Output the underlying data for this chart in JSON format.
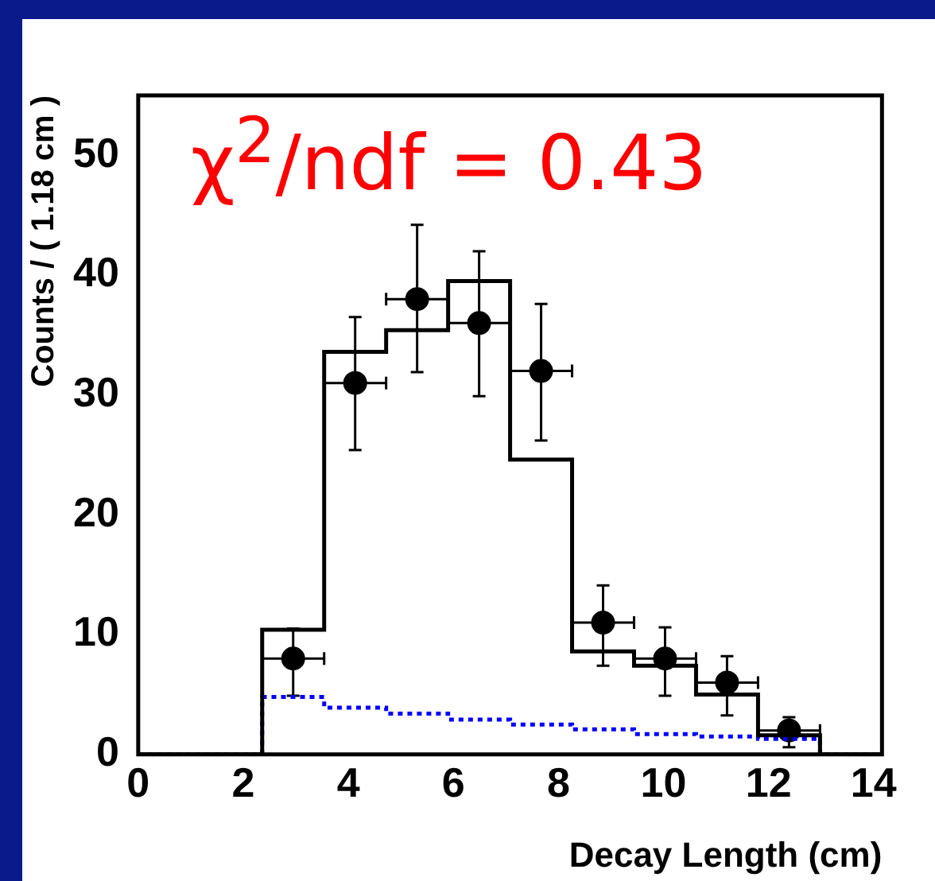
{
  "chart_data": {
    "type": "histogram",
    "ylabel": "Counts / ( 1.18 cm )",
    "xlabel": "Decay Length (cm)",
    "annotations": [
      "χ$^{2}$/ndf = 0.43"
    ],
    "bins": [
      0,
      2.36,
      3.54,
      4.72,
      5.9,
      7.08,
      8.26,
      9.44,
      10.62,
      11.8,
      12.98,
      14.16
    ],
    "series": [
      {
        "color": "#000000",
        "line_style": "solid",
        "values": [
          0,
          10.4,
          33.6,
          35.4,
          39.5,
          24.6,
          8.6,
          7.4,
          5,
          1.6,
          0
        ]
      },
      {
        "color": "#0000ff",
        "line_style": "dotted",
        "values": [
          0,
          4.8,
          3.9,
          3.4,
          2.9,
          2.5,
          2.1,
          1.7,
          1.5,
          1.3,
          0
        ]
      },
      {
        "type": "scatter",
        "color": "#000000",
        "marker": "circle",
        "x": [
          2.95,
          4.13,
          5.31,
          6.49,
          7.67,
          8.85,
          10.03,
          11.21,
          12.39
        ],
        "values": [
          8,
          31,
          38,
          36,
          32,
          11,
          8,
          6,
          2
        ],
        "errors": [
          [
            4.9,
            10.5
          ],
          [
            25.4,
            36.5
          ],
          [
            31.9,
            44.2
          ],
          [
            29.9,
            42
          ],
          [
            26.2,
            37.6
          ],
          [
            7.4,
            14.1
          ],
          [
            4.9,
            10.6
          ],
          [
            3.25,
            8.2
          ],
          [
            0.6,
            3.1
          ]
        ],
        "xerrors": [
          0.59,
          0.59,
          0.59,
          0.59,
          0.59,
          0.59,
          0.59,
          0.59,
          0.59
        ]
      }
    ],
    "xlim": [
      0,
      14.16
    ],
    "ylim": [
      0,
      55
    ],
    "xticks": [
      0,
      2,
      4,
      6,
      8,
      10,
      12,
      14
    ],
    "yticks": [
      0,
      10,
      20,
      30,
      40,
      50
    ],
    "grid": false,
    "legend": false
  }
}
